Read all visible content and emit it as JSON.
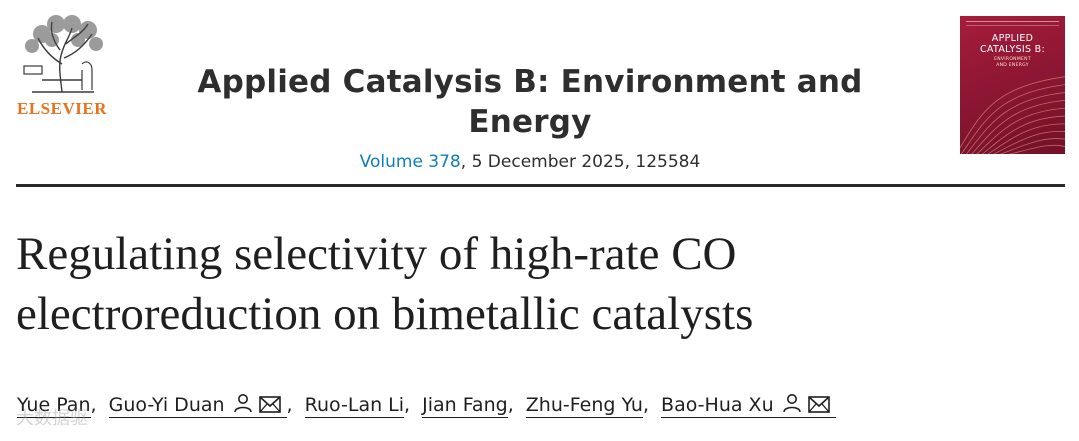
{
  "header": {
    "publisher": "ELSEVIER",
    "journal_title": "Applied Catalysis B: Environment and Energy",
    "volume_link": "Volume 378",
    "issue_rest": ", 5 December 2025, 125584",
    "cover": {
      "title_line1": "APPLIED",
      "title_line2": "CATALYSIS B:",
      "subtitle_line1": "ENVIRONMENT",
      "subtitle_line2": "AND ENERGY"
    }
  },
  "article": {
    "title_line1": "Regulating selectivity of high-rate CO",
    "title_line2": "electroreduction on bimetallic catalysts"
  },
  "authors": [
    {
      "name": "Yue Pan",
      "icons": []
    },
    {
      "name": "Guo-Yi Duan",
      "icons": [
        "person-icon",
        "envelope-icon"
      ]
    },
    {
      "name": "Ruo-Lan Li",
      "icons": []
    },
    {
      "name": "Jian Fang",
      "icons": []
    },
    {
      "name": "Zhu-Feng Yu",
      "icons": []
    },
    {
      "name": "Bao-Hua Xu",
      "icons": [
        "person-icon",
        "envelope-icon"
      ]
    }
  ],
  "watermark": "大数据驱",
  "colors": {
    "publisher_orange": "#e9711c",
    "link_blue": "#0c7dbb",
    "cover_red": "#8c1633",
    "text": "#1f1f1f"
  }
}
